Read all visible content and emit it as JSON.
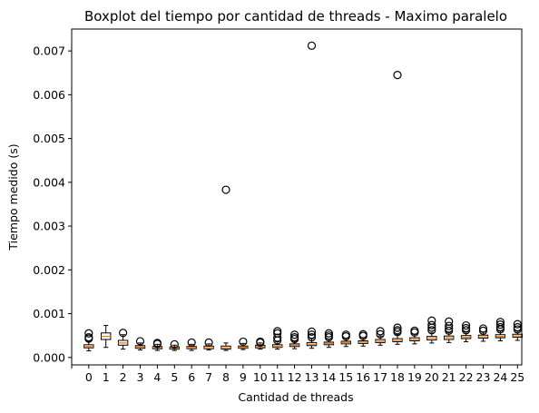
{
  "chart_data": {
    "type": "box",
    "title": "Boxplot del tiempo por cantidad de threads - Maximo paralelo",
    "xlabel": "Cantidad de threads",
    "ylabel": "Tiempo medido (s)",
    "categories": [
      "0",
      "1",
      "2",
      "3",
      "4",
      "5",
      "6",
      "7",
      "8",
      "9",
      "10",
      "11",
      "12",
      "13",
      "14",
      "15",
      "16",
      "17",
      "18",
      "19",
      "20",
      "21",
      "22",
      "23",
      "24",
      "25"
    ],
    "ylim": [
      -0.00017,
      0.0075
    ],
    "yticks": [
      0.0,
      0.001,
      0.002,
      0.003,
      0.004,
      0.005,
      0.006,
      0.007
    ],
    "ytick_labels": [
      "0.000",
      "0.001",
      "0.002",
      "0.003",
      "0.004",
      "0.005",
      "0.006",
      "0.007"
    ],
    "grid": false,
    "colors": {
      "box_edge": "#000000",
      "median": "#ff7f0e",
      "box_face": "#ffffff",
      "flier": "#000000"
    },
    "boxes": [
      {
        "label": "0",
        "whislo": 0.00015,
        "q1": 0.00022,
        "med": 0.00025,
        "q3": 0.00029,
        "whishi": 0.00036,
        "fliers": [
          0.00043,
          0.00046,
          0.00055
        ]
      },
      {
        "label": "1",
        "whislo": 0.00023,
        "q1": 0.00041,
        "med": 0.00048,
        "q3": 0.00056,
        "whishi": 0.00073,
        "fliers": []
      },
      {
        "label": "2",
        "whislo": 0.00019,
        "q1": 0.00028,
        "med": 0.00033,
        "q3": 0.00039,
        "whishi": 0.00052,
        "fliers": [
          0.00056
        ]
      },
      {
        "label": "3",
        "whislo": 0.00017,
        "q1": 0.00021,
        "med": 0.00024,
        "q3": 0.00027,
        "whishi": 0.00033,
        "fliers": [
          0.00037
        ]
      },
      {
        "label": "4",
        "whislo": 0.00016,
        "q1": 0.0002,
        "med": 0.00023,
        "q3": 0.00025,
        "whishi": 0.0003,
        "fliers": [
          0.00031,
          0.00033
        ]
      },
      {
        "label": "5",
        "whislo": 0.00016,
        "q1": 0.00019,
        "med": 0.00021,
        "q3": 0.00024,
        "whishi": 0.00028,
        "fliers": [
          0.0003
        ]
      },
      {
        "label": "6",
        "whislo": 0.00016,
        "q1": 0.0002,
        "med": 0.00022,
        "q3": 0.00025,
        "whishi": 0.0003,
        "fliers": [
          0.00034
        ]
      },
      {
        "label": "7",
        "whislo": 0.00017,
        "q1": 0.0002,
        "med": 0.00022,
        "q3": 0.00026,
        "whishi": 0.00031,
        "fliers": [
          0.00034
        ]
      },
      {
        "label": "8",
        "whislo": 0.00016,
        "q1": 0.00019,
        "med": 0.00022,
        "q3": 0.00026,
        "whishi": 0.00033,
        "fliers": [
          0.00383
        ]
      },
      {
        "label": "9",
        "whislo": 0.00018,
        "q1": 0.00021,
        "med": 0.00023,
        "q3": 0.00026,
        "whishi": 0.00032,
        "fliers": [
          0.00036
        ]
      },
      {
        "label": "10",
        "whislo": 0.00019,
        "q1": 0.00022,
        "med": 0.00025,
        "q3": 0.00028,
        "whishi": 0.00033,
        "fliers": [
          0.00034,
          0.00036
        ]
      },
      {
        "label": "11",
        "whislo": 0.00019,
        "q1": 0.00023,
        "med": 0.00025,
        "q3": 0.00029,
        "whishi": 0.00036,
        "fliers": [
          0.00039,
          0.00045,
          0.00055,
          0.0006
        ]
      },
      {
        "label": "12",
        "whislo": 0.0002,
        "q1": 0.00025,
        "med": 0.00028,
        "q3": 0.00031,
        "whishi": 0.00037,
        "fliers": [
          0.00042,
          0.00046,
          0.00052
        ]
      },
      {
        "label": "13",
        "whislo": 0.00021,
        "q1": 0.00027,
        "med": 0.0003,
        "q3": 0.00034,
        "whishi": 0.00043,
        "fliers": [
          0.00046,
          0.00052,
          0.00059,
          0.00712
        ]
      },
      {
        "label": "14",
        "whislo": 0.00023,
        "q1": 0.00029,
        "med": 0.00032,
        "q3": 0.00035,
        "whishi": 0.00042,
        "fliers": [
          0.00046,
          0.0005,
          0.00055
        ]
      },
      {
        "label": "15",
        "whislo": 0.00025,
        "q1": 0.00031,
        "med": 0.00034,
        "q3": 0.00037,
        "whishi": 0.00044,
        "fliers": [
          0.00048,
          0.00052
        ]
      },
      {
        "label": "16",
        "whislo": 0.00026,
        "q1": 0.00032,
        "med": 0.00035,
        "q3": 0.00038,
        "whishi": 0.00045,
        "fliers": [
          0.00049,
          0.00053
        ]
      },
      {
        "label": "17",
        "whislo": 0.00028,
        "q1": 0.00034,
        "med": 0.00037,
        "q3": 0.00041,
        "whishi": 0.00049,
        "fliers": [
          0.00053,
          0.0006
        ]
      },
      {
        "label": "18",
        "whislo": 0.0003,
        "q1": 0.00036,
        "med": 0.00039,
        "q3": 0.00043,
        "whishi": 0.00052,
        "fliers": [
          0.00058,
          0.00062,
          0.00068,
          0.00645
        ]
      },
      {
        "label": "19",
        "whislo": 0.00031,
        "q1": 0.00038,
        "med": 0.00041,
        "q3": 0.00045,
        "whishi": 0.00053,
        "fliers": [
          0.00057,
          0.00061
        ]
      },
      {
        "label": "20",
        "whislo": 0.00033,
        "q1": 0.0004,
        "med": 0.00044,
        "q3": 0.00048,
        "whishi": 0.00056,
        "fliers": [
          0.00062,
          0.00068,
          0.00074,
          0.00084
        ]
      },
      {
        "label": "21",
        "whislo": 0.00034,
        "q1": 0.00041,
        "med": 0.00045,
        "q3": 0.00049,
        "whishi": 0.00057,
        "fliers": [
          0.00061,
          0.00066,
          0.00072,
          0.00082
        ]
      },
      {
        "label": "22",
        "whislo": 0.00036,
        "q1": 0.00043,
        "med": 0.00046,
        "q3": 0.0005,
        "whishi": 0.00058,
        "fliers": [
          0.00062,
          0.00067,
          0.00073
        ]
      },
      {
        "label": "23",
        "whislo": 0.00037,
        "q1": 0.00044,
        "med": 0.00047,
        "q3": 0.00051,
        "whishi": 0.00058,
        "fliers": [
          0.00061,
          0.00066
        ]
      },
      {
        "label": "24",
        "whislo": 0.00038,
        "q1": 0.00045,
        "med": 0.00048,
        "q3": 0.00052,
        "whishi": 0.0006,
        "fliers": [
          0.00064,
          0.00069,
          0.00075,
          0.00081
        ]
      },
      {
        "label": "25",
        "whislo": 0.00039,
        "q1": 0.00046,
        "med": 0.00049,
        "q3": 0.00053,
        "whishi": 0.0006,
        "fliers": [
          0.00064,
          0.00069,
          0.00076
        ]
      }
    ]
  }
}
